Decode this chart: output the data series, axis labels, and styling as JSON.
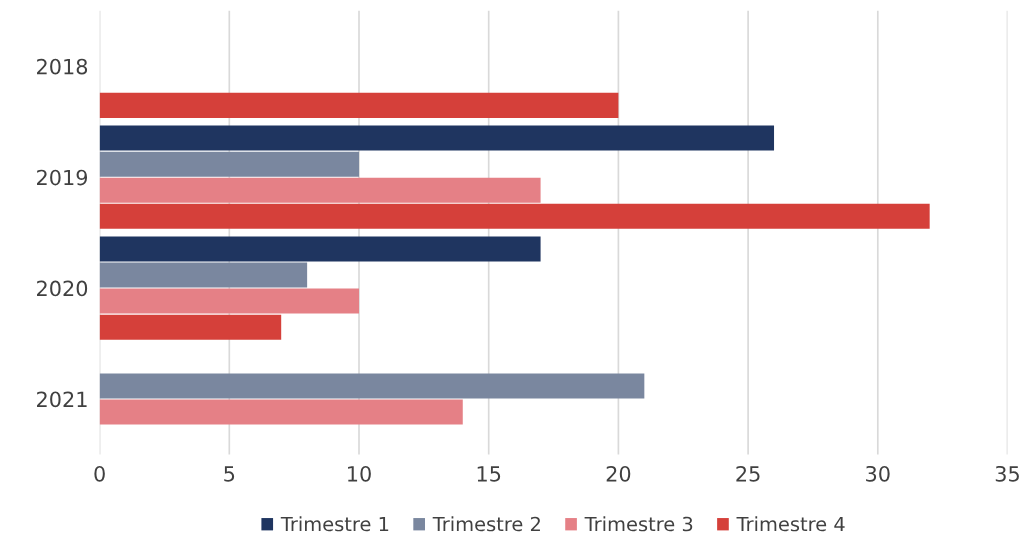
{
  "chart_data": {
    "type": "bar",
    "orientation": "horizontal",
    "categories": [
      "2018",
      "2019",
      "2020",
      "2021"
    ],
    "series": [
      {
        "name": "Trimestre 1",
        "color": "#1f3560",
        "values": [
          null,
          26,
          17,
          null
        ]
      },
      {
        "name": "Trimestre 2",
        "color": "#7a879f",
        "values": [
          null,
          10,
          8,
          21
        ]
      },
      {
        "name": "Trimestre 3",
        "color": "#e58086",
        "values": [
          null,
          17,
          10,
          14
        ]
      },
      {
        "name": "Trimestre 4",
        "color": "#d5403a",
        "values": [
          20,
          32,
          7,
          null
        ]
      }
    ],
    "xlim": [
      0,
      35
    ],
    "xticks": [
      0,
      5,
      10,
      15,
      20,
      25,
      30,
      35
    ],
    "grid": "x",
    "legend": "bottom"
  }
}
